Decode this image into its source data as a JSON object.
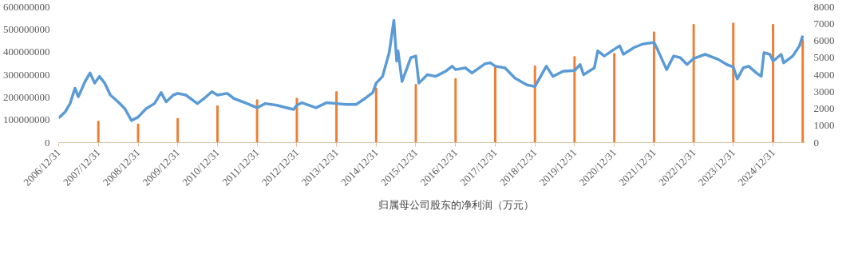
{
  "chart_data": {
    "type": "bar",
    "x": [
      "2007-12-31",
      "2008-12-31",
      "2009-12-31",
      "2010-12-31",
      "2011-12-31",
      "2012-12-31",
      "2013-12-31",
      "2014-12-31",
      "2015-12-31",
      "2016-12-31",
      "2017-12-31",
      "2018-12-31",
      "2019-12-31",
      "2020-12-31",
      "2021-12-31",
      "2022-12-31",
      "2023-12-31",
      "2024-12-31",
      "2025-09-30"
    ],
    "series": [
      {
        "name": "归属母公司股东的净利润（万元）",
        "color": "#ed7d31",
        "values": [
          94000000,
          82000000,
          107000000,
          163000000,
          189000000,
          196000000,
          225000000,
          241000000,
          257000000,
          283000000,
          339000000,
          339000000,
          380000000,
          394000000,
          489000000,
          522000000,
          528000000,
          522000000,
          455000000
        ]
      },
      {
        "type": "line",
        "axis": "y2",
        "color": "#5b9bd5",
        "x": [
          "2006-12-31",
          "2007-02-28",
          "2007-04-15",
          "2007-05-30",
          "2007-06-30",
          "2007-08-31",
          "2007-10-16",
          "2007-11-28",
          "2008-01-10",
          "2008-02-28",
          "2008-04-20",
          "2008-06-30",
          "2008-08-31",
          "2008-10-31",
          "2008-12-31",
          "2009-03-15",
          "2009-05-31",
          "2009-07-31",
          "2009-09-15",
          "2009-11-20",
          "2009-12-31",
          "2010-03-15",
          "2010-06-30",
          "2010-08-31",
          "2010-11-10",
          "2010-12-31",
          "2011-03-31",
          "2011-05-31",
          "2011-09-30",
          "2011-12-31",
          "2012-03-15",
          "2012-06-30",
          "2012-09-30",
          "2012-11-30",
          "2012-12-31",
          "2013-02-15",
          "2013-06-25",
          "2013-09-30",
          "2013-12-31",
          "2014-03-31",
          "2014-06-30",
          "2014-09-30",
          "2014-11-30",
          "2014-12-31",
          "2015-02-28",
          "2015-04-30",
          "2015-06-12",
          "2015-07-08",
          "2015-07-20",
          "2015-08-26",
          "2015-11-15",
          "2015-12-31",
          "2016-01-28",
          "2016-04-15",
          "2016-06-30",
          "2016-09-30",
          "2016-11-30",
          "2016-12-31",
          "2017-03-31",
          "2017-05-31",
          "2017-09-30",
          "2017-11-15",
          "2017-12-31",
          "2018-03-31",
          "2018-06-30",
          "2018-10-18",
          "2018-12-31",
          "2019-04-15",
          "2019-06-15",
          "2019-09-15",
          "2019-12-31",
          "2020-02-20",
          "2020-03-23",
          "2020-06-30",
          "2020-07-31",
          "2020-09-30",
          "2020-12-31",
          "2021-02-18",
          "2021-03-25",
          "2021-06-30",
          "2021-09-15",
          "2021-12-31",
          "2022-01-31",
          "2022-04-26",
          "2022-06-30",
          "2022-08-31",
          "2022-10-31",
          "2022-12-31",
          "2023-04-15",
          "2023-08-15",
          "2023-10-31",
          "2023-12-31",
          "2024-02-05",
          "2024-03-31",
          "2024-05-20",
          "2024-07-31",
          "2024-09-13",
          "2024-10-08",
          "2024-11-30",
          "2024-12-31",
          "2025-03-15",
          "2025-04-08",
          "2025-06-30",
          "2025-08-31",
          "2025-09-30"
        ],
        "values": [
          1450,
          1800,
          2300,
          3200,
          2700,
          3600,
          4100,
          3500,
          3900,
          3500,
          2800,
          2400,
          2000,
          1300,
          1500,
          2000,
          2300,
          2950,
          2400,
          2800,
          2900,
          2800,
          2300,
          2600,
          3000,
          2800,
          2900,
          2600,
          2300,
          2050,
          2300,
          2200,
          2050,
          1950,
          2200,
          2350,
          2050,
          2350,
          2300,
          2250,
          2250,
          2650,
          2950,
          3500,
          3900,
          5300,
          7200,
          4800,
          5400,
          3600,
          5000,
          5100,
          3500,
          4000,
          3900,
          4200,
          4500,
          4300,
          4400,
          4100,
          4650,
          4700,
          4500,
          4400,
          3800,
          3400,
          3300,
          4500,
          3900,
          4200,
          4250,
          4600,
          4000,
          4400,
          5400,
          5100,
          5500,
          5700,
          5200,
          5600,
          5800,
          5900,
          5500,
          4300,
          5100,
          5000,
          4600,
          4950,
          5200,
          4900,
          4600,
          4450,
          3750,
          4400,
          4500,
          4100,
          3900,
          5300,
          5200,
          4800,
          5200,
          4700,
          5100,
          5700,
          6300
        ]
      }
    ],
    "xlim": [
      "2006-12-31",
      "2025-10-20"
    ],
    "xticks": [
      {
        "value": "2006-12-31",
        "label": "2006/12/31"
      },
      {
        "value": "2007-12-31",
        "label": "2007/12/31"
      },
      {
        "value": "2008-12-31",
        "label": "2008/12/31"
      },
      {
        "value": "2009-12-31",
        "label": "2009/12/31"
      },
      {
        "value": "2010-12-31",
        "label": "2010/12/31"
      },
      {
        "value": "2011-12-31",
        "label": "2011/12/31"
      },
      {
        "value": "2012-12-31",
        "label": "2012/12/31"
      },
      {
        "value": "2013-12-31",
        "label": "2013/12/31"
      },
      {
        "value": "2014-12-31",
        "label": "2014/12/31"
      },
      {
        "value": "2015-12-31",
        "label": "2015/12/31"
      },
      {
        "value": "2016-12-31",
        "label": "2016/12/31"
      },
      {
        "value": "2017-12-31",
        "label": "2017/12/31"
      },
      {
        "value": "2018-12-31",
        "label": "2018/12/31"
      },
      {
        "value": "2019-12-31",
        "label": "2019/12/31"
      },
      {
        "value": "2020-12-31",
        "label": "2020/12/31"
      },
      {
        "value": "2021-12-31",
        "label": "2021/12/31"
      },
      {
        "value": "2022-12-31",
        "label": "2022/12/31"
      },
      {
        "value": "2023-12-31",
        "label": "2023/12/31"
      },
      {
        "value": "2024-12-31",
        "label": "2024/12/31"
      }
    ],
    "ylim": [
      0,
      600000000
    ],
    "yticks": [
      0,
      100000000,
      200000000,
      300000000,
      400000000,
      500000000,
      600000000
    ],
    "y2lim": [
      0,
      8000
    ],
    "y2ticks": [
      0,
      1000,
      2000,
      3000,
      4000,
      5000,
      6000,
      7000,
      8000
    ],
    "grid": false,
    "legend": "bottom"
  }
}
